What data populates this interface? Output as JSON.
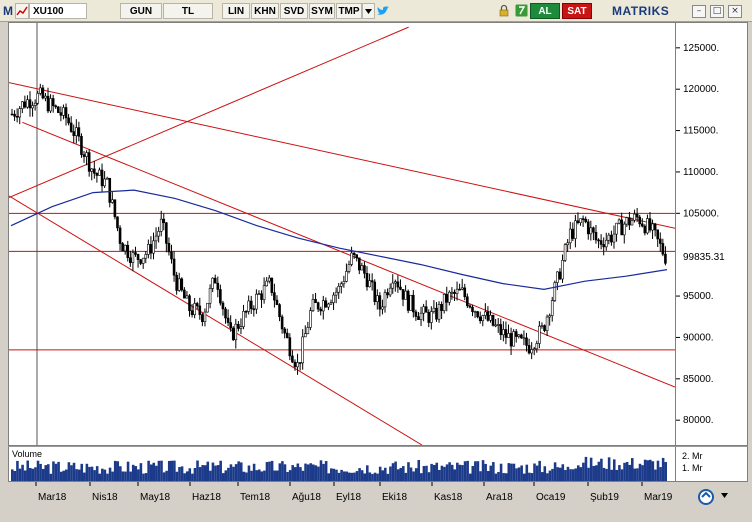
{
  "toolbar": {
    "menu_letter": "M",
    "symbol": "XU100",
    "period": "GUN",
    "currency": "TL",
    "scale_lin": "LIN",
    "btn_khn": "KHN",
    "btn_svd": "SVD",
    "btn_sym": "SYM",
    "btn_tmp": "TMP",
    "al_label": "AL",
    "sat_label": "SAT",
    "brand": "MATRIKS",
    "twitter_icon": "twitter-bird-icon",
    "icons": [
      "chart-type-icon",
      "refresh-icon",
      "lock-icon",
      "restore-window-icon",
      "maximize-icon",
      "close-icon"
    ]
  },
  "volume": {
    "label": "Volume",
    "ticks": [
      "2. Mr",
      "1. Mr"
    ]
  },
  "price_axis": {
    "ticks": [
      "125000.",
      "120000.",
      "115000.",
      "110000.",
      "105000.",
      "100000.",
      "95000.",
      "90000.",
      "85000.",
      "80000."
    ],
    "last_price": "99835.31",
    "last_price_bg": "#ffffff"
  },
  "time_axis": {
    "labels": [
      "Mar18",
      "Nis18",
      "May18",
      "Haz18",
      "Tem18",
      "Ağu18",
      "Eyl18",
      "Eki18",
      "Kas18",
      "Ara18",
      "Oca19",
      "Şub19",
      "Mar19"
    ]
  },
  "colors": {
    "candles": "#000000",
    "moving_average": "#1a2a9a",
    "trendlines": "#cc1111",
    "volume_bars": "#1c3a8a"
  },
  "chart_data": {
    "type": "candlestick",
    "symbol": "XU100",
    "ylim": [
      77000,
      128000
    ],
    "x": [
      "Mar18",
      "Nis18",
      "May18",
      "Haz18",
      "Tem18",
      "Ağu18",
      "Eyl18",
      "Eki18",
      "Kas18",
      "Ara18",
      "Oca19",
      "Şub19",
      "Mar19"
    ],
    "close_series": [
      117000,
      118500,
      119200,
      117800,
      116500,
      113500,
      110000,
      108500,
      101500,
      99500,
      100300,
      103800,
      97000,
      93500,
      92800,
      97500,
      90000,
      92500,
      94800,
      96500,
      90500,
      86500,
      93500,
      94500,
      95800,
      99800,
      97500,
      93500,
      97800,
      94500,
      92800,
      92500,
      94800,
      95500,
      93500,
      92000,
      90500,
      89500,
      89000,
      91000,
      96500,
      102500,
      104200,
      101500,
      102200,
      103800,
      104500,
      102800,
      99835
    ],
    "moving_average": [
      103500,
      105800,
      107500,
      107800,
      106800,
      105300,
      103500,
      102000,
      100800,
      99800,
      98800,
      97600,
      96500,
      95800,
      96800,
      97400,
      98200
    ],
    "horizontal_levels": [
      105000,
      100400,
      88500
    ],
    "last_price": 99835.31,
    "volume_ticks": [
      "1. Mr",
      "2. Mr"
    ]
  }
}
